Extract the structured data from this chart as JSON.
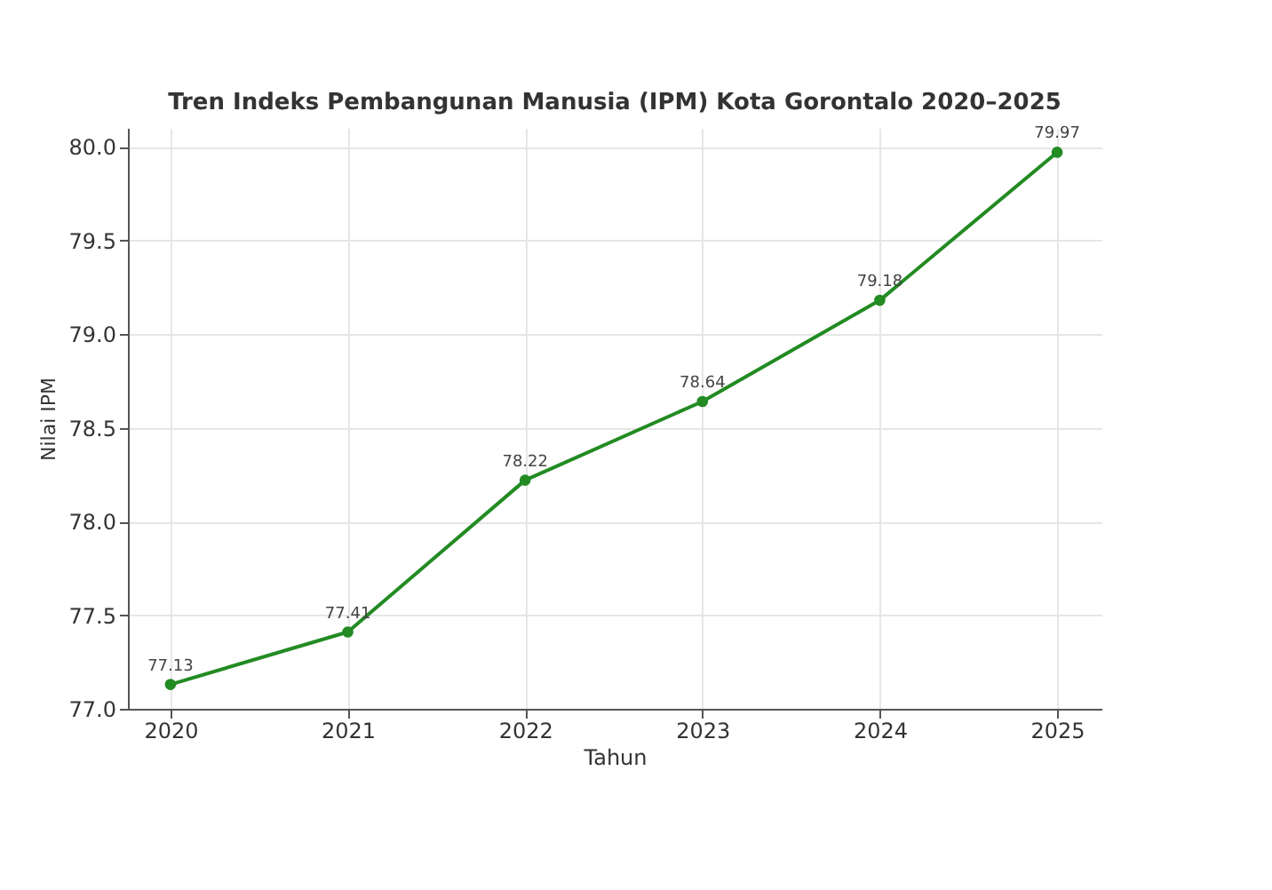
{
  "chart_data": {
    "type": "line",
    "title": "Tren Indeks Pembangunan Manusia (IPM) Kota Gorontalo 2020–2025",
    "xlabel": "Tahun",
    "ylabel": "Nilai IPM",
    "x": [
      2020,
      2021,
      2022,
      2023,
      2024,
      2025
    ],
    "series": [
      {
        "color": "#228b22",
        "values": [
          77.13,
          77.41,
          78.22,
          78.64,
          79.18,
          79.97
        ]
      }
    ],
    "xlim": [
      2019.76,
      2025.25
    ],
    "xticks": [
      2020,
      2021,
      2022,
      2023,
      2024,
      2025
    ],
    "ylim": [
      77.0,
      80.1
    ],
    "yticks": [
      {
        "value": 77,
        "label": "77.0"
      },
      {
        "value": 77.5,
        "label": "77.5"
      },
      {
        "value": 78,
        "label": "78.0"
      },
      {
        "value": 78.5,
        "label": "78.5"
      },
      {
        "value": 79,
        "label": "79.0"
      },
      {
        "value": 79.5,
        "label": "79.5"
      },
      {
        "value": 80,
        "label": "80.0"
      }
    ],
    "grid": true,
    "marker": "circle",
    "line_style": "solid",
    "data_labels": true
  }
}
